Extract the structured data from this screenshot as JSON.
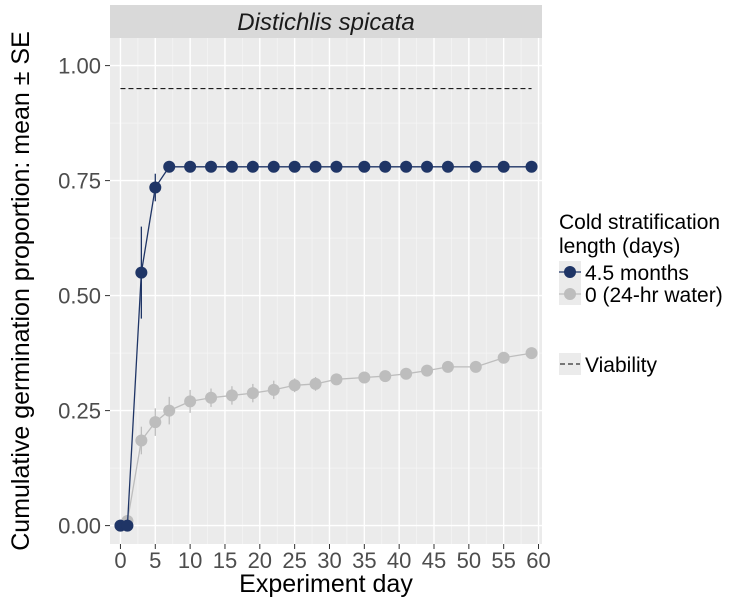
{
  "chart_data": {
    "type": "line",
    "title": "Distichlis spicata",
    "xlabel": "Experiment day",
    "ylabel": "Cumulative germination proportion: mean ± SE",
    "xlim": [
      -1.5,
      60.5
    ],
    "ylim": [
      -0.04,
      1.06
    ],
    "x_ticks": [
      0,
      5,
      10,
      15,
      20,
      25,
      30,
      35,
      40,
      45,
      50,
      55,
      60
    ],
    "x_tick_labels": [
      "0",
      "5",
      "10",
      "15",
      "20",
      "25",
      "30",
      "35",
      "40",
      "45",
      "50",
      "55",
      "60"
    ],
    "y_ticks": [
      0,
      0.25,
      0.5,
      0.75,
      1.0
    ],
    "y_tick_labels": [
      "0.00",
      "0.25",
      "0.50",
      "0.75",
      "1.00"
    ],
    "grid": true,
    "legend": {
      "title_lines": [
        "Cold stratification",
        "length (days)"
      ],
      "position": "right"
    },
    "series": [
      {
        "name": "4.5 months",
        "color": "#1f3566",
        "x": [
          0,
          1,
          3,
          5,
          7,
          10,
          13,
          16,
          19,
          22,
          25,
          28,
          31,
          35,
          38,
          41,
          44,
          47,
          51,
          55,
          59
        ],
        "y": [
          0,
          0,
          0.55,
          0.735,
          0.78,
          0.78,
          0.78,
          0.78,
          0.78,
          0.78,
          0.78,
          0.78,
          0.78,
          0.78,
          0.78,
          0.78,
          0.78,
          0.78,
          0.78,
          0.78,
          0.78
        ],
        "se": [
          0,
          0,
          0.1,
          0.03,
          0.01,
          0.01,
          0.01,
          0.01,
          0.01,
          0.01,
          0.01,
          0.01,
          0.01,
          0.01,
          0.01,
          0.01,
          0.01,
          0.01,
          0.01,
          0.01,
          0.01
        ]
      },
      {
        "name": "0 (24-hr water)",
        "color": "#bdbdbd",
        "x": [
          0,
          1,
          3,
          5,
          7,
          10,
          13,
          16,
          19,
          22,
          25,
          28,
          31,
          35,
          38,
          41,
          44,
          47,
          51,
          55,
          59
        ],
        "y": [
          0,
          0.01,
          0.185,
          0.225,
          0.25,
          0.27,
          0.278,
          0.283,
          0.288,
          0.295,
          0.305,
          0.308,
          0.318,
          0.322,
          0.325,
          0.33,
          0.337,
          0.345,
          0.345,
          0.365,
          0.375
        ],
        "se": [
          0,
          0.01,
          0.03,
          0.03,
          0.03,
          0.025,
          0.02,
          0.02,
          0.02,
          0.02,
          0.015,
          0.015,
          0.012,
          0.01,
          0.01,
          0.01,
          0.01,
          0.01,
          0.01,
          0.01,
          0.01
        ]
      }
    ],
    "reference_lines": [
      {
        "name": "Viability",
        "y": 0.95,
        "x_start": 0,
        "x_end": 59,
        "style": "dashed"
      }
    ]
  }
}
